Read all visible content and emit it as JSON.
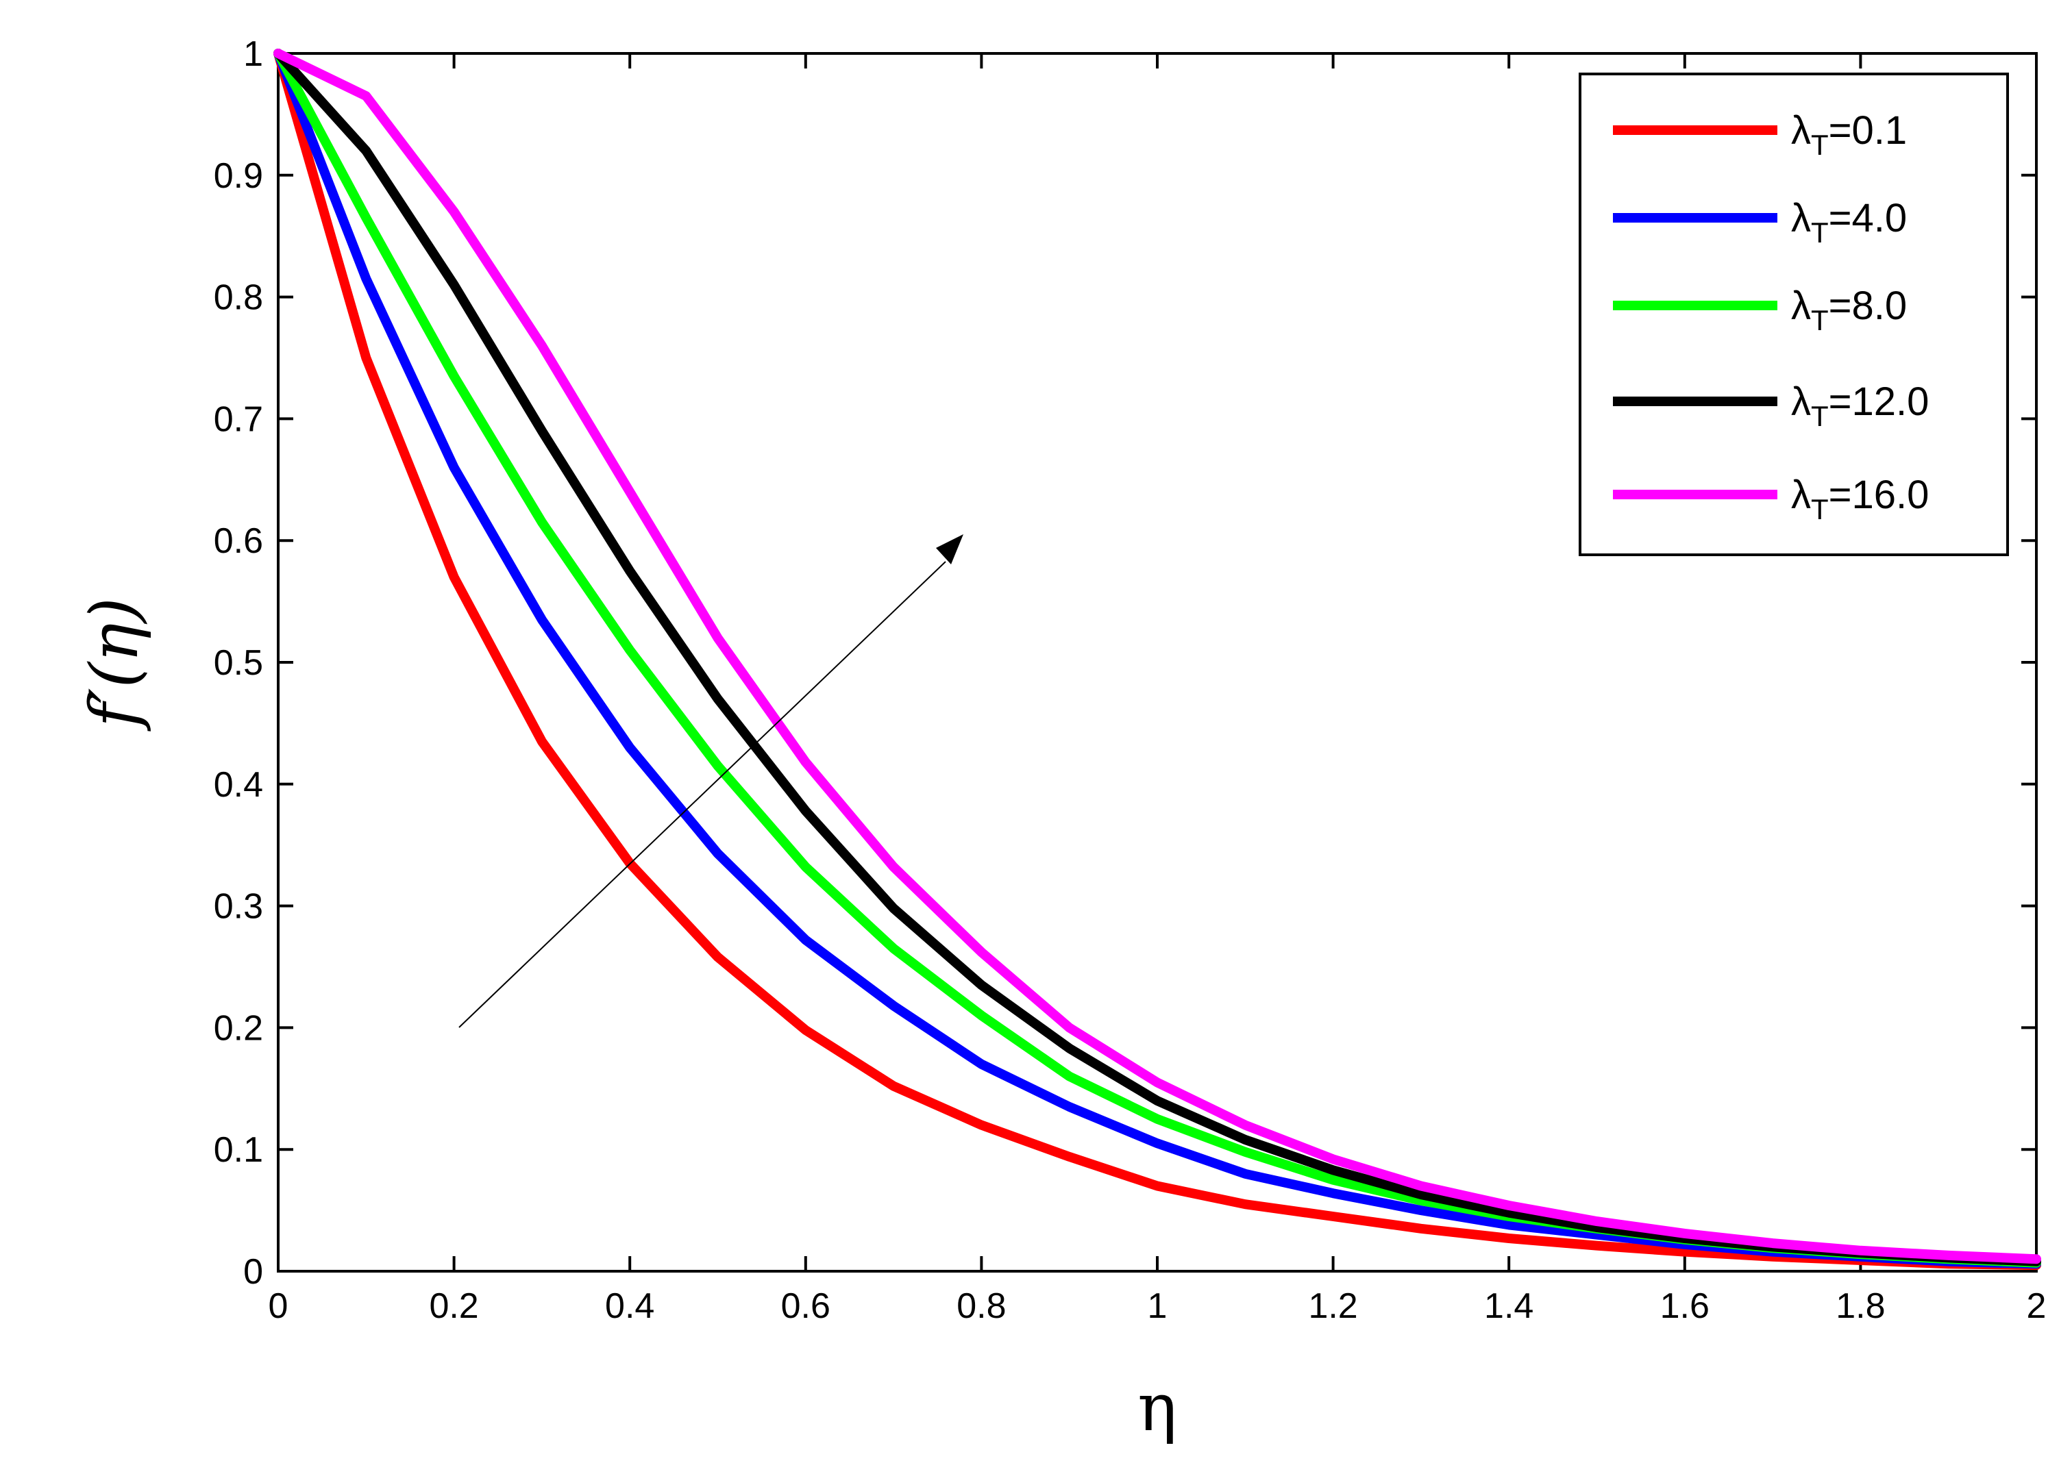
{
  "chart_data": {
    "type": "line",
    "xlabel": "η",
    "ylabel": "f′(η)",
    "xlim": [
      0,
      2
    ],
    "ylim": [
      0,
      1
    ],
    "xticks": [
      0,
      0.2,
      0.4,
      0.6,
      0.8,
      1,
      1.2,
      1.4,
      1.6,
      1.8,
      2
    ],
    "xtick_labels": [
      "0",
      "0.2",
      "0.4",
      "0.6",
      "0.8",
      "1",
      "1.2",
      "1.4",
      "1.6",
      "1.8",
      "2"
    ],
    "yticks": [
      0,
      0.1,
      0.2,
      0.3,
      0.4,
      0.5,
      0.6,
      0.7,
      0.8,
      0.9,
      1
    ],
    "ytick_labels": [
      "0",
      "0.1",
      "0.2",
      "0.3",
      "0.4",
      "0.5",
      "0.6",
      "0.7",
      "0.8",
      "0.9",
      "1"
    ],
    "grid": false,
    "legend_position": "top-right",
    "annotation": "arrow pointing up-right indicating increasing λT",
    "x": [
      0,
      0.1,
      0.2,
      0.3,
      0.4,
      0.5,
      0.6,
      0.7,
      0.8,
      0.9,
      1.0,
      1.1,
      1.2,
      1.3,
      1.4,
      1.5,
      1.6,
      1.7,
      1.8,
      1.9,
      2.0
    ],
    "series": [
      {
        "name": "λT=0.1",
        "legend_main": "λ",
        "legend_sub": "T",
        "legend_value": "=0.1",
        "color": "#ff0000",
        "values": [
          1.0,
          0.75,
          0.57,
          0.435,
          0.335,
          0.258,
          0.198,
          0.152,
          0.12,
          0.094,
          0.07,
          0.055,
          0.045,
          0.035,
          0.027,
          0.021,
          0.016,
          0.012,
          0.009,
          0.006,
          0.005
        ]
      },
      {
        "name": "λT=4.0",
        "legend_main": "λ",
        "legend_sub": "T",
        "legend_value": "=4.0",
        "color": "#0000ff",
        "values": [
          1.0,
          0.815,
          0.66,
          0.535,
          0.43,
          0.343,
          0.272,
          0.218,
          0.17,
          0.135,
          0.105,
          0.08,
          0.064,
          0.05,
          0.038,
          0.03,
          0.022,
          0.016,
          0.012,
          0.008,
          0.006
        ]
      },
      {
        "name": "λT=8.0",
        "legend_main": "λ",
        "legend_sub": "T",
        "legend_value": "=8.0",
        "color": "#00ff00",
        "values": [
          1.0,
          0.865,
          0.735,
          0.615,
          0.51,
          0.415,
          0.332,
          0.265,
          0.21,
          0.16,
          0.125,
          0.098,
          0.075,
          0.058,
          0.045,
          0.035,
          0.026,
          0.019,
          0.014,
          0.01,
          0.007
        ]
      },
      {
        "name": "λT=12.0",
        "legend_main": "λ",
        "legend_sub": "T",
        "legend_value": "=12.0",
        "color": "#000000",
        "values": [
          1.0,
          0.92,
          0.81,
          0.69,
          0.575,
          0.47,
          0.378,
          0.298,
          0.235,
          0.183,
          0.14,
          0.108,
          0.083,
          0.063,
          0.048,
          0.036,
          0.027,
          0.02,
          0.015,
          0.011,
          0.008
        ]
      },
      {
        "name": "λT=16.0",
        "legend_main": "λ",
        "legend_sub": "T",
        "legend_value": "=16.0",
        "color": "#ff00ff",
        "values": [
          1.0,
          0.965,
          0.87,
          0.76,
          0.64,
          0.52,
          0.418,
          0.332,
          0.262,
          0.2,
          0.155,
          0.12,
          0.092,
          0.07,
          0.054,
          0.041,
          0.031,
          0.023,
          0.017,
          0.013,
          0.01
        ]
      }
    ]
  }
}
